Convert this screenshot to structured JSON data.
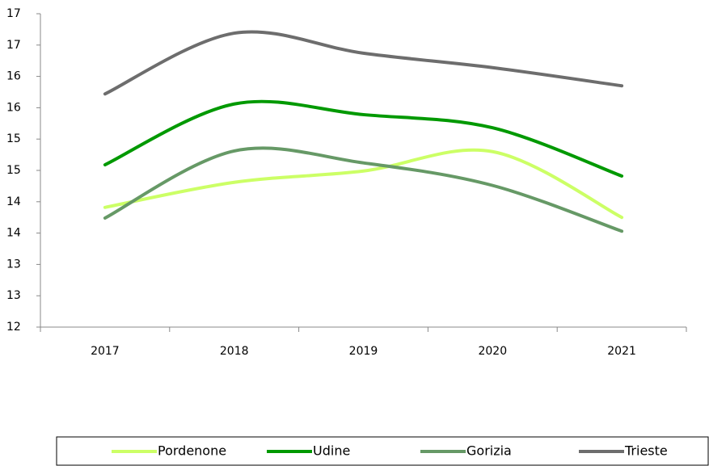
{
  "chart_data": {
    "type": "line",
    "categories": [
      "2017",
      "2018",
      "2019",
      "2020",
      "2021"
    ],
    "series": [
      {
        "name": "Pordenone",
        "color": "#ccff66",
        "values": [
          13.91,
          14.31,
          14.49,
          14.8,
          13.75
        ]
      },
      {
        "name": "Udine",
        "color": "#009900",
        "values": [
          14.59,
          15.56,
          15.39,
          15.18,
          14.41
        ]
      },
      {
        "name": "Gorizia",
        "color": "#669966",
        "values": [
          13.74,
          14.81,
          14.62,
          14.26,
          13.53
        ]
      },
      {
        "name": "Trieste",
        "color": "#6d6d6d",
        "values": [
          15.72,
          16.69,
          16.37,
          16.14,
          15.85
        ]
      }
    ],
    "ylim": [
      12,
      17
    ],
    "yticks": [
      12,
      {
        "value": 12.5,
        "label": "13"
      },
      13,
      {
        "value": 13.5,
        "label": "14"
      },
      14,
      {
        "value": 14.5,
        "label": "15"
      },
      15,
      {
        "value": 15.5,
        "label": "16"
      },
      16,
      {
        "value": 16.5,
        "label": "17"
      },
      17
    ],
    "smooth": true,
    "grid": false,
    "legend": "bottom"
  }
}
